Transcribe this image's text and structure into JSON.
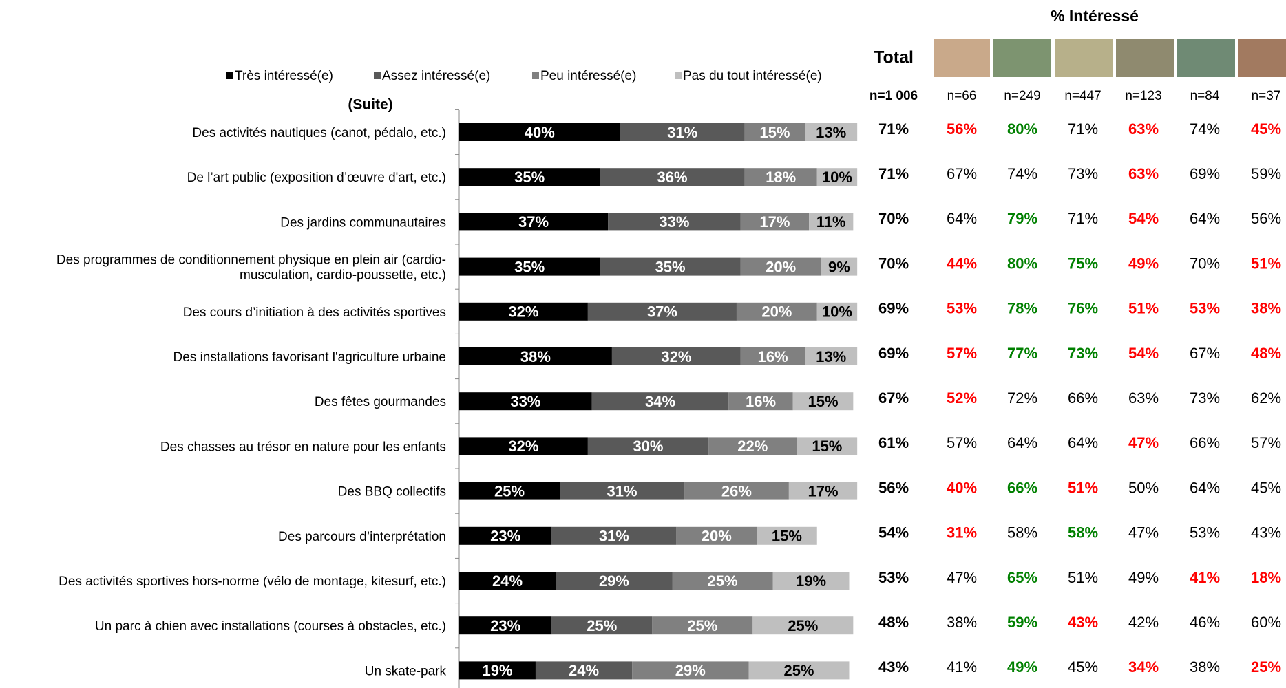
{
  "chart_data": {
    "type": "bar",
    "orientation": "horizontal",
    "stacked": true,
    "subtitle": "(Suite)",
    "xlim": [
      0,
      100
    ],
    "legend": "top",
    "categories": [
      "Des activités nautiques (canot, pédalo, etc.)",
      "De l’art public (exposition d’œuvre d'art, etc.)",
      "Des jardins communautaires",
      "Des programmes de conditionnement physique en plein air (cardio-\nmusculation, cardio-poussette, etc.)",
      "Des cours d’initiation à des activités sportives",
      "Des installations favorisant l'agriculture urbaine",
      "Des fêtes gourmandes",
      "Des chasses au trésor en nature pour les enfants",
      "Des BBQ collectifs",
      "Des parcours d’interprétation",
      "Des activités sportives hors-norme (vélo de montage, kitesurf, etc.)",
      "Un parc à chien avec installations (courses à obstacles, etc.)",
      "Un skate-park"
    ],
    "series": [
      {
        "name": "Très intéressé(e)",
        "color": "#000000",
        "label_color": "#ffffff",
        "values": [
          40,
          35,
          37,
          35,
          32,
          38,
          33,
          32,
          25,
          23,
          24,
          23,
          19
        ],
        "value_labels": [
          "40%",
          "35%",
          "37%",
          "35%",
          "32%",
          "38%",
          "33%",
          "32%",
          "25%",
          "23%",
          "24%",
          "23%",
          "19%"
        ]
      },
      {
        "name": "Assez intéressé(e)",
        "color": "#595959",
        "label_color": "#ffffff",
        "values": [
          31,
          36,
          33,
          35,
          37,
          32,
          34,
          30,
          31,
          31,
          29,
          25,
          24
        ],
        "value_labels": [
          "31%",
          "36%",
          "33%",
          "35%",
          "37%",
          "32%",
          "34%",
          "30%",
          "31%",
          "31%",
          "29%",
          "25%",
          "24%"
        ]
      },
      {
        "name": "Peu intéressé(e)",
        "color": "#808080",
        "label_color": "#ffffff",
        "values": [
          15,
          18,
          17,
          20,
          20,
          16,
          16,
          22,
          26,
          20,
          25,
          25,
          29
        ],
        "value_labels": [
          "15%",
          "18%",
          "17%",
          "20%",
          "20%",
          "16%",
          "16%",
          "22%",
          "26%",
          "20%",
          "25%",
          "25%",
          "29%"
        ]
      },
      {
        "name": "Pas du tout intéressé(e)",
        "color": "#bfbfbf",
        "label_color": "#000000",
        "values": [
          13,
          10,
          11,
          9,
          10,
          13,
          15,
          15,
          17,
          15,
          19,
          25,
          25
        ],
        "value_labels": [
          "13%",
          "10%",
          "11%",
          "9%",
          "10%",
          "13%",
          "15%",
          "15%",
          "17%",
          "15%",
          "19%",
          "25%",
          "25%"
        ]
      }
    ]
  },
  "table": {
    "title": "% Intéressé",
    "total_header": "Total",
    "n": [
      "n=1 006",
      "n=66",
      "n=249",
      "n=447",
      "n=123",
      "n=84",
      "n=37"
    ],
    "rows": [
      {
        "cells": [
          "71%",
          "56%",
          "80%",
          "71%",
          "63%",
          "74%",
          "45%"
        ],
        "colors": [
          "#000000",
          "#ff0000",
          "#008000",
          "#000000",
          "#ff0000",
          "#000000",
          "#ff0000"
        ]
      },
      {
        "cells": [
          "71%",
          "67%",
          "74%",
          "73%",
          "63%",
          "69%",
          "59%"
        ],
        "colors": [
          "#000000",
          "#000000",
          "#000000",
          "#000000",
          "#ff0000",
          "#000000",
          "#000000"
        ]
      },
      {
        "cells": [
          "70%",
          "64%",
          "79%",
          "71%",
          "54%",
          "64%",
          "56%"
        ],
        "colors": [
          "#000000",
          "#000000",
          "#008000",
          "#000000",
          "#ff0000",
          "#000000",
          "#000000"
        ]
      },
      {
        "cells": [
          "70%",
          "44%",
          "80%",
          "75%",
          "49%",
          "70%",
          "51%"
        ],
        "colors": [
          "#000000",
          "#ff0000",
          "#008000",
          "#008000",
          "#ff0000",
          "#000000",
          "#ff0000"
        ]
      },
      {
        "cells": [
          "69%",
          "53%",
          "78%",
          "76%",
          "51%",
          "53%",
          "38%"
        ],
        "colors": [
          "#000000",
          "#ff0000",
          "#008000",
          "#008000",
          "#ff0000",
          "#ff0000",
          "#ff0000"
        ]
      },
      {
        "cells": [
          "69%",
          "57%",
          "77%",
          "73%",
          "54%",
          "67%",
          "48%"
        ],
        "colors": [
          "#000000",
          "#ff0000",
          "#008000",
          "#008000",
          "#ff0000",
          "#000000",
          "#ff0000"
        ]
      },
      {
        "cells": [
          "67%",
          "52%",
          "72%",
          "66%",
          "63%",
          "73%",
          "62%"
        ],
        "colors": [
          "#000000",
          "#ff0000",
          "#000000",
          "#000000",
          "#000000",
          "#000000",
          "#000000"
        ]
      },
      {
        "cells": [
          "61%",
          "57%",
          "64%",
          "64%",
          "47%",
          "66%",
          "57%"
        ],
        "colors": [
          "#000000",
          "#000000",
          "#000000",
          "#000000",
          "#ff0000",
          "#000000",
          "#000000"
        ]
      },
      {
        "cells": [
          "56%",
          "40%",
          "66%",
          "51%",
          "50%",
          "64%",
          "45%"
        ],
        "colors": [
          "#000000",
          "#ff0000",
          "#008000",
          "#ff0000",
          "#000000",
          "#000000",
          "#000000"
        ]
      },
      {
        "cells": [
          "54%",
          "31%",
          "58%",
          "58%",
          "47%",
          "53%",
          "43%"
        ],
        "colors": [
          "#000000",
          "#ff0000",
          "#000000",
          "#008000",
          "#000000",
          "#000000",
          "#000000"
        ]
      },
      {
        "cells": [
          "53%",
          "47%",
          "65%",
          "51%",
          "49%",
          "41%",
          "18%"
        ],
        "colors": [
          "#000000",
          "#000000",
          "#008000",
          "#000000",
          "#000000",
          "#ff0000",
          "#ff0000"
        ]
      },
      {
        "cells": [
          "48%",
          "38%",
          "59%",
          "43%",
          "42%",
          "46%",
          "60%"
        ],
        "colors": [
          "#000000",
          "#000000",
          "#008000",
          "#ff0000",
          "#000000",
          "#000000",
          "#000000"
        ]
      },
      {
        "cells": [
          "43%",
          "41%",
          "49%",
          "45%",
          "34%",
          "38%",
          "25%"
        ],
        "colors": [
          "#000000",
          "#000000",
          "#008000",
          "#000000",
          "#ff0000",
          "#000000",
          "#ff0000"
        ]
      }
    ]
  }
}
